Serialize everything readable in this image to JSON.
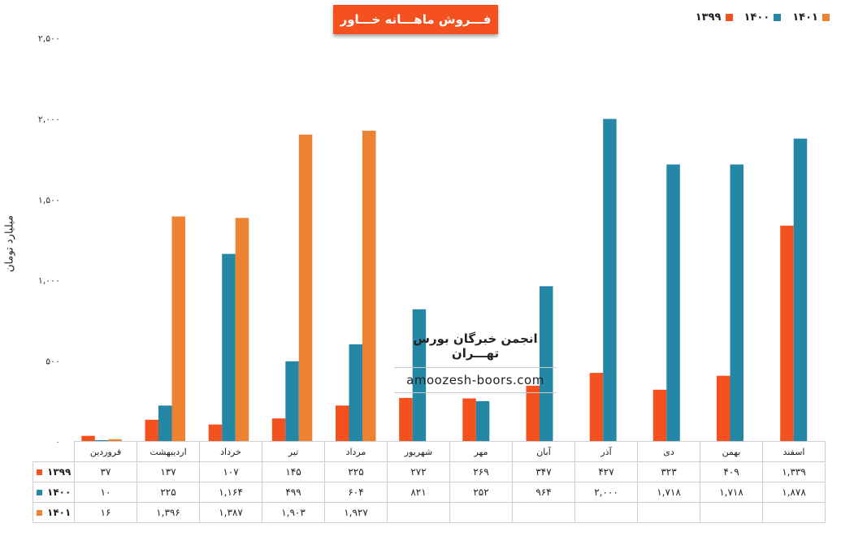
{
  "title": "فـــروش ماهـــانه خـــاور",
  "ylabel": "میلیارد تومان",
  "watermark": {
    "title": "انجمن خبرگان بورس تهـــران",
    "url": "amoozesh-boors.com"
  },
  "colors": {
    "1399": "#f4511e",
    "1400": "#2587a6",
    "1401": "#ee8233"
  },
  "chart_data": {
    "type": "bar",
    "categories": [
      "فروردین",
      "اردیبهشت",
      "خرداد",
      "تیر",
      "مرداد",
      "شهریور",
      "مهر",
      "آبان",
      "آذر",
      "دی",
      "بهمن",
      "اسفند"
    ],
    "series": [
      {
        "name": "۱۳۹۹",
        "key": "1399",
        "values": [
          37,
          137,
          107,
          145,
          225,
          272,
          269,
          347,
          427,
          323,
          409,
          1339
        ],
        "labels": [
          "۳۷",
          "۱۳۷",
          "۱۰۷",
          "۱۴۵",
          "۲۲۵",
          "۲۷۲",
          "۲۶۹",
          "۳۴۷",
          "۴۲۷",
          "۳۲۳",
          "۴۰۹",
          "۱,۳۳۹"
        ]
      },
      {
        "name": "۱۴۰۰",
        "key": "1400",
        "values": [
          10,
          225,
          1164,
          499,
          604,
          821,
          252,
          964,
          2000,
          1718,
          1718,
          1878
        ],
        "labels": [
          "۱۰",
          "۲۲۵",
          "۱,۱۶۴",
          "۴۹۹",
          "۶۰۴",
          "۸۲۱",
          "۲۵۲",
          "۹۶۴",
          "۲,۰۰۰",
          "۱,۷۱۸",
          "۱,۷۱۸",
          "۱,۸۷۸"
        ]
      },
      {
        "name": "۱۴۰۱",
        "key": "1401",
        "values": [
          16,
          1396,
          1387,
          1903,
          1927,
          null,
          null,
          null,
          null,
          null,
          null,
          null
        ],
        "labels": [
          "۱۶",
          "۱,۳۹۶",
          "۱,۳۸۷",
          "۱,۹۰۳",
          "۱,۹۲۷",
          "",
          "",
          "",
          "",
          "",
          "",
          ""
        ]
      }
    ],
    "ylim": [
      0,
      2500
    ],
    "yticks": [
      0,
      500,
      1000,
      1500,
      2000,
      2500
    ],
    "ytick_labels": [
      "۰",
      "۵۰۰",
      "۱,۰۰۰",
      "۱,۵۰۰",
      "۲,۰۰۰",
      "۲,۵۰۰"
    ],
    "legend_position": "top-right",
    "grid": false
  }
}
